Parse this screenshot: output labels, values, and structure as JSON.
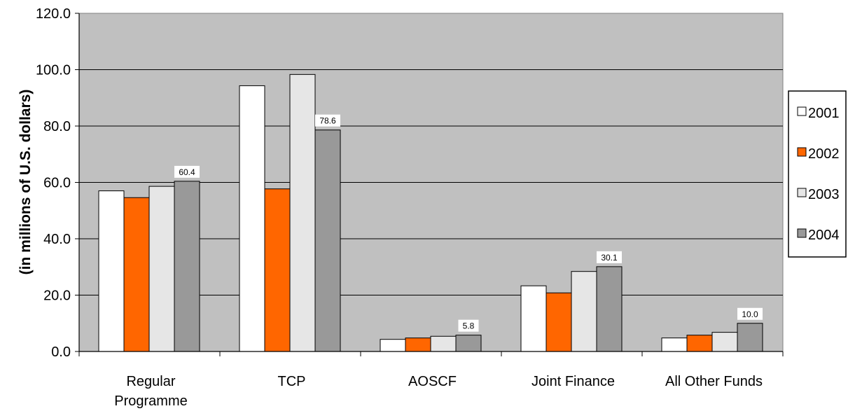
{
  "chart_data": {
    "type": "bar",
    "title": "",
    "xlabel": "",
    "ylabel": "(in millions of U.S. dollars)",
    "ylim": [
      0,
      120
    ],
    "yticks": [
      "0.0",
      "20.0",
      "40.0",
      "60.0",
      "80.0",
      "100.0",
      "120.0"
    ],
    "categories": [
      [
        "Regular",
        "Programme"
      ],
      [
        "TCP"
      ],
      [
        "AOSCF"
      ],
      [
        "Joint Finance"
      ],
      [
        "All Other Funds"
      ]
    ],
    "series": [
      {
        "name": "2001",
        "color": "#ffffff",
        "values": [
          57.0,
          94.3,
          4.3,
          23.3,
          4.8
        ]
      },
      {
        "name": "2002",
        "color": "#ff6600",
        "values": [
          54.6,
          57.7,
          4.8,
          20.8,
          5.8
        ]
      },
      {
        "name": "2003",
        "color": "#e6e6e6",
        "values": [
          58.6,
          98.3,
          5.4,
          28.4,
          6.8
        ]
      },
      {
        "name": "2004",
        "color": "#999999",
        "values": [
          60.4,
          78.6,
          5.8,
          30.1,
          10.0
        ]
      }
    ],
    "data_labels": {
      "series_index": 3,
      "labels": [
        "60.4",
        "78.6",
        "5.8",
        "30.1",
        "10.0"
      ]
    },
    "grid": true,
    "plot_background": "#c0c0c0",
    "legend": "right"
  }
}
